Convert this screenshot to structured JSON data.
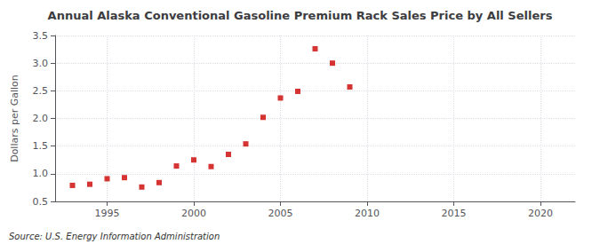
{
  "chart_data": {
    "type": "scatter",
    "title": "Annual Alaska Conventional Gasoline Premium Rack Sales Price by All Sellers",
    "ylabel": "Dollars per Gallon",
    "annotations": [
      "Source: U.S. Energy Information Administration"
    ],
    "x": [
      1993,
      1994,
      1995,
      1996,
      1997,
      1998,
      1999,
      2000,
      2001,
      2002,
      2003,
      2004,
      2005,
      2006,
      2007,
      2008,
      2009
    ],
    "values": [
      0.79,
      0.81,
      0.91,
      0.93,
      0.76,
      0.84,
      1.14,
      1.25,
      1.13,
      1.35,
      1.54,
      2.02,
      2.37,
      2.49,
      3.26,
      3.0,
      2.57
    ],
    "color": "#cc0000",
    "marker": "square",
    "xlim": [
      1992,
      2022
    ],
    "ylim": [
      0.5,
      3.5
    ],
    "xticks": [
      1995,
      2000,
      2005,
      2010,
      2015,
      2020
    ],
    "yticks": [
      0.5,
      {
        "value": 1.0,
        "label": "1.0"
      },
      1.5,
      {
        "value": 2.0,
        "label": "2.0"
      },
      2.5,
      {
        "value": 3.0,
        "label": "3.0"
      },
      3.5
    ],
    "grid": true
  }
}
